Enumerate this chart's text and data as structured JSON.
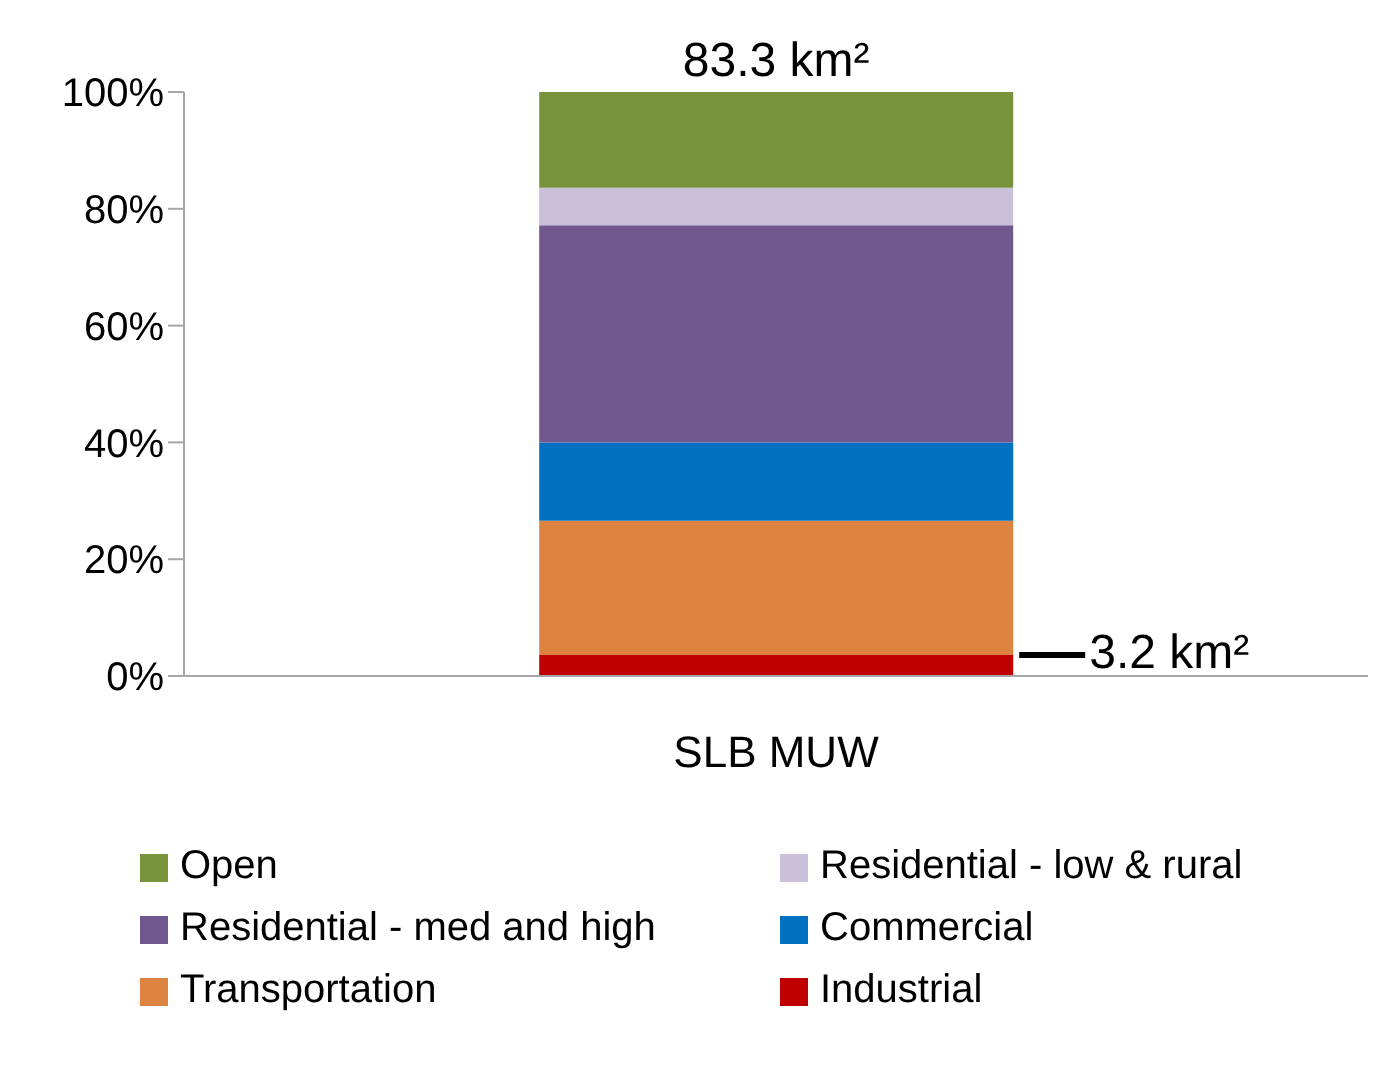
{
  "chart_data": {
    "type": "bar",
    "stacked": true,
    "categories": [
      "SLB MUW"
    ],
    "series": [
      {
        "name": "Industrial",
        "color": "#c00000",
        "values": [
          3.6
        ]
      },
      {
        "name": "Transportation",
        "color": "#dc843f",
        "values": [
          23.0
        ]
      },
      {
        "name": "Commercial",
        "color": "#0070c0",
        "values": [
          13.4
        ]
      },
      {
        "name": "Residential - med and high",
        "color": "#70588f",
        "values": [
          37.2
        ]
      },
      {
        "name": "Residential - low & rural",
        "color": "#cbc0da",
        "values": [
          6.4
        ]
      },
      {
        "name": "Open",
        "color": "#77933c",
        "values": [
          16.4
        ]
      }
    ],
    "ylim": [
      0,
      100
    ],
    "yticks": [
      {
        "value": 0,
        "label": "0%"
      },
      {
        "value": 20,
        "label": "20%"
      },
      {
        "value": 40,
        "label": "40%"
      },
      {
        "value": 60,
        "label": "60%"
      },
      {
        "value": 80,
        "label": "80%"
      },
      {
        "value": 100,
        "label": "100%"
      }
    ],
    "annotations": [
      {
        "text": "83.3 km²",
        "x": "SLB MUW",
        "y": 100
      },
      "3.2 km²"
    ],
    "legend": "bottom"
  }
}
